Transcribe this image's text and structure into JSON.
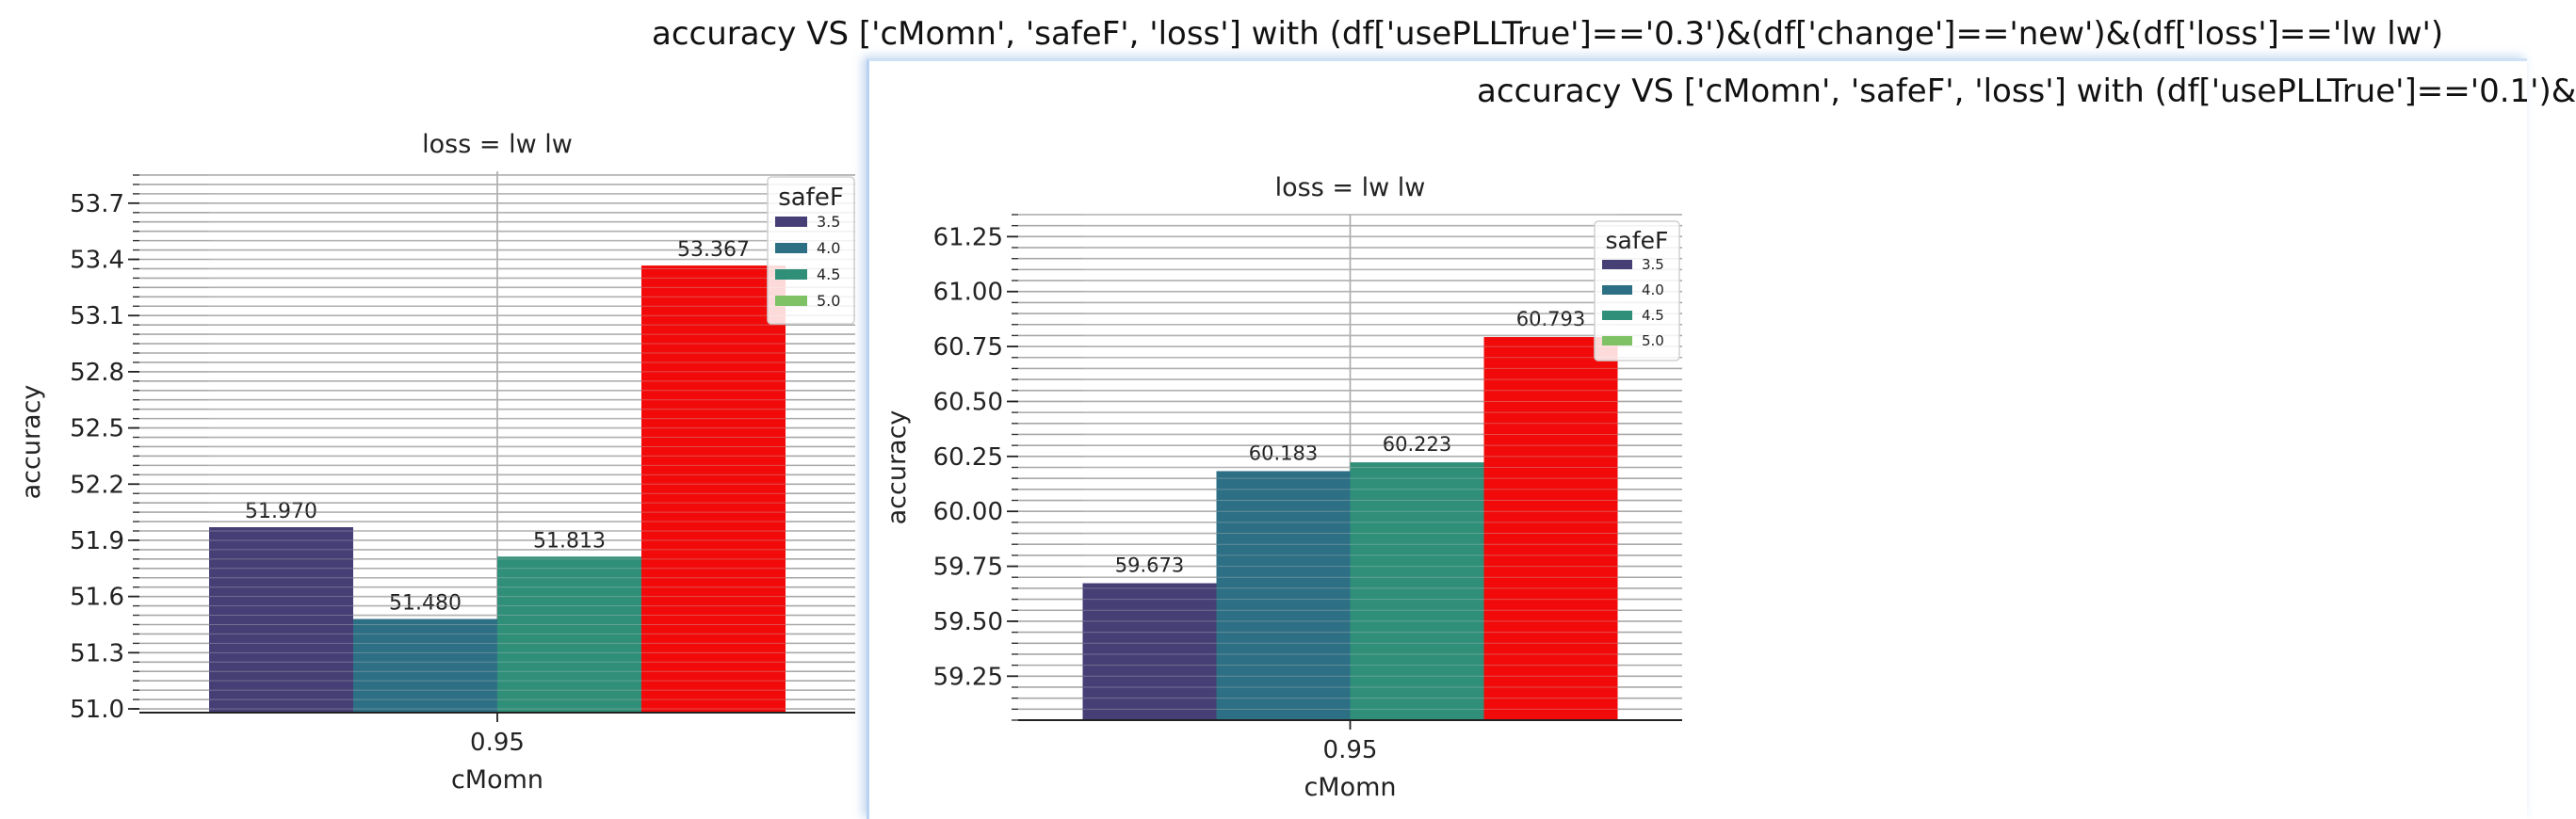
{
  "windows": [
    {
      "suptitle": "accuracy VS ['cMomn', 'safeF', 'loss'] with (df['usePLLTrue']=='0.3')&(df['change']=='new')&(df['loss']=='lw lw')"
    },
    {
      "suptitle": "accuracy VS ['cMomn', 'safeF', 'loss'] with (df['usePLLTrue']=='0.1')&"
    }
  ],
  "colors": {
    "safeF_3.5": "#453f75",
    "safeF_4.0": "#2d6f84",
    "safeF_4.5": "#2f8f79",
    "safeF_5.0": "#7ec265",
    "highlight": "#f20a0a",
    "grid": "#a8a8a8",
    "window_border": "#b9d4f2"
  },
  "chart_data": [
    {
      "type": "bar",
      "title": "loss = lw lw",
      "xlabel": "cMomn",
      "ylabel": "accuracy",
      "categories": [
        "0.95"
      ],
      "series": [
        {
          "name": "3.5",
          "values": [
            51.97
          ],
          "label": "51.970"
        },
        {
          "name": "4.0",
          "values": [
            51.48
          ],
          "label": "51.480"
        },
        {
          "name": "4.5",
          "values": [
            51.813
          ],
          "label": "51.813"
        },
        {
          "name": "5.0",
          "values": [
            53.367
          ],
          "label": "53.367",
          "highlighted": true
        }
      ],
      "ylim": [
        50.98,
        53.87
      ],
      "yticks": [
        51.0,
        51.3,
        51.6,
        51.9,
        52.2,
        52.5,
        52.8,
        53.1,
        53.4,
        53.7
      ],
      "ytick_labels": [
        "51.0",
        "51.3",
        "51.6",
        "51.9",
        "52.2",
        "52.5",
        "52.8",
        "53.1",
        "53.4",
        "53.7"
      ],
      "minor_ystep": 0.05,
      "legend_title": "safeF",
      "legend_loc": "top-right",
      "grid": true
    },
    {
      "type": "bar",
      "title": "loss = lw lw",
      "xlabel": "cMomn",
      "ylabel": "accuracy",
      "categories": [
        "0.95"
      ],
      "series": [
        {
          "name": "3.5",
          "values": [
            59.673
          ],
          "label": "59.673"
        },
        {
          "name": "4.0",
          "values": [
            60.183
          ],
          "label": "60.183"
        },
        {
          "name": "4.5",
          "values": [
            60.223
          ],
          "label": "60.223"
        },
        {
          "name": "5.0",
          "values": [
            60.793
          ],
          "label": "60.793",
          "highlighted": true
        }
      ],
      "ylim": [
        59.05,
        61.35
      ],
      "yticks": [
        59.25,
        59.5,
        59.75,
        60.0,
        60.25,
        60.5,
        60.75,
        61.0,
        61.25
      ],
      "ytick_labels": [
        "59.25",
        "59.50",
        "59.75",
        "60.00",
        "60.25",
        "60.50",
        "60.75",
        "61.00",
        "61.25"
      ],
      "minor_ystep": 0.05,
      "legend_title": "safeF",
      "legend_loc": "top-right",
      "grid": true
    }
  ]
}
